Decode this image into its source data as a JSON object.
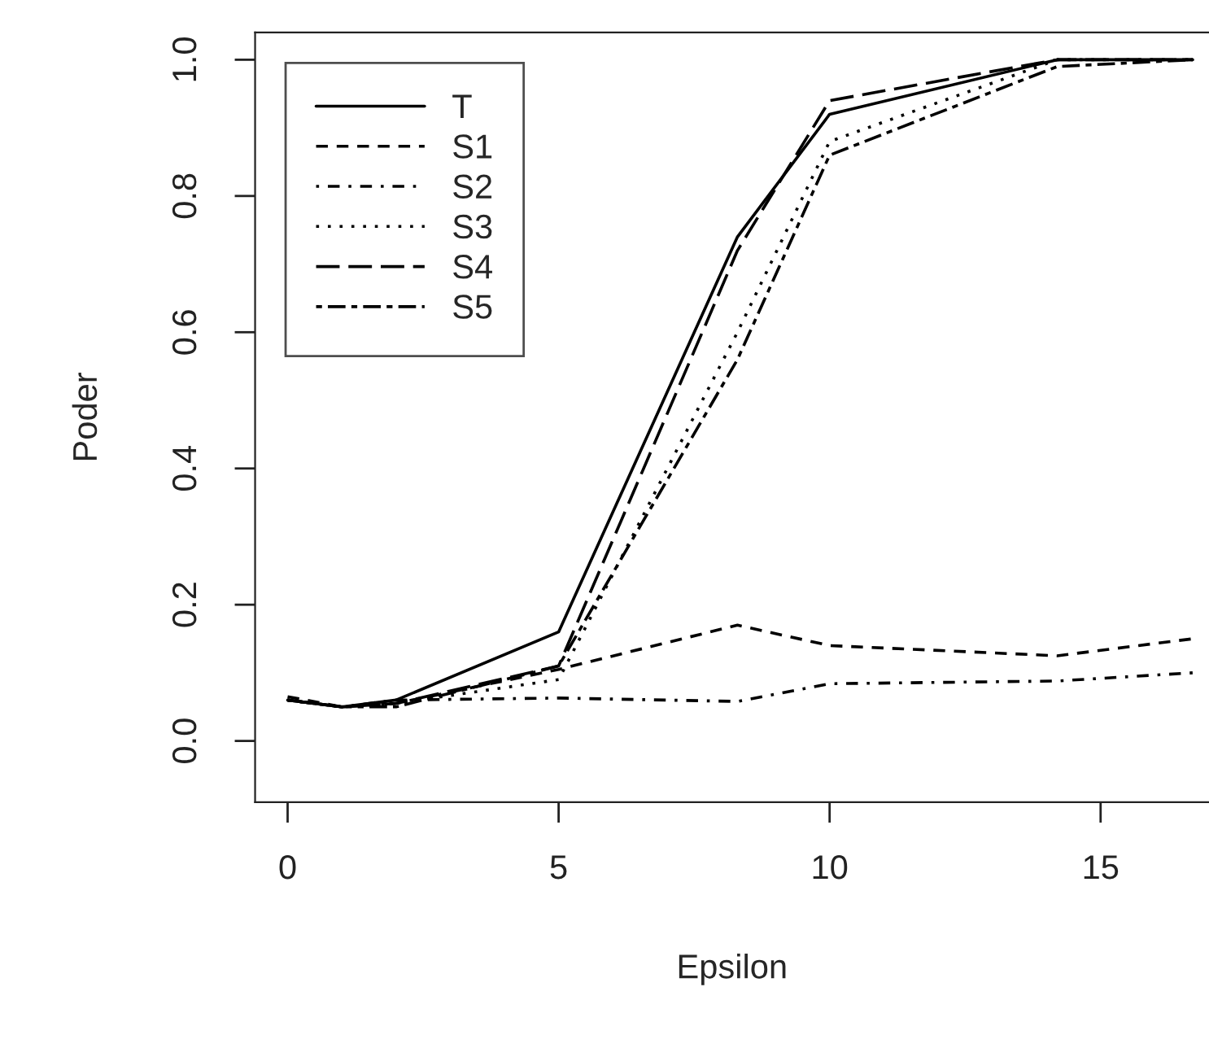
{
  "chart_data": {
    "type": "line",
    "xlabel": "Epsilon",
    "ylabel": "Poder",
    "x": [
      0,
      1,
      2,
      5,
      8.3,
      10,
      14.2,
      16.7
    ],
    "series": [
      {
        "name": "T",
        "color": "#000000",
        "line_style": "solid",
        "values": [
          0.06,
          0.05,
          0.06,
          0.16,
          0.74,
          0.92,
          1.0,
          1.0
        ]
      },
      {
        "name": "S1",
        "color": "#000000",
        "line_style": "dashed",
        "values": [
          0.065,
          0.05,
          0.055,
          0.105,
          0.17,
          0.14,
          0.125,
          0.15
        ]
      },
      {
        "name": "S2",
        "color": "#000000",
        "line_style": "dashdot",
        "values": [
          0.06,
          0.05,
          0.06,
          0.063,
          0.058,
          0.084,
          0.088,
          0.1
        ]
      },
      {
        "name": "S3",
        "color": "#000000",
        "line_style": "dotted",
        "values": [
          0.06,
          0.05,
          0.055,
          0.09,
          0.6,
          0.88,
          1.0,
          1.0
        ]
      },
      {
        "name": "S4",
        "color": "#000000",
        "line_style": "longdash",
        "values": [
          0.06,
          0.05,
          0.055,
          0.11,
          0.72,
          0.94,
          1.0,
          1.0
        ]
      },
      {
        "name": "S5",
        "color": "#000000",
        "line_style": "twodash",
        "values": [
          0.06,
          0.05,
          0.05,
          0.11,
          0.56,
          0.86,
          0.99,
          1.0
        ]
      }
    ],
    "xlim": [
      -0.6,
      17.0
    ],
    "xticks": [
      0,
      5,
      10,
      15
    ],
    "ylim": [
      -0.09,
      1.04
    ],
    "yticks": [
      {
        "value": 0,
        "label": "0.0"
      },
      {
        "value": 0.2,
        "label": "0.2"
      },
      {
        "value": 0.4,
        "label": "0.4"
      },
      {
        "value": 0.6,
        "label": "0.6"
      },
      {
        "value": 0.8,
        "label": "0.8"
      },
      {
        "value": 1.0,
        "label": "1.0"
      }
    ],
    "grid": false,
    "legend": "top left",
    "marker": "none"
  }
}
